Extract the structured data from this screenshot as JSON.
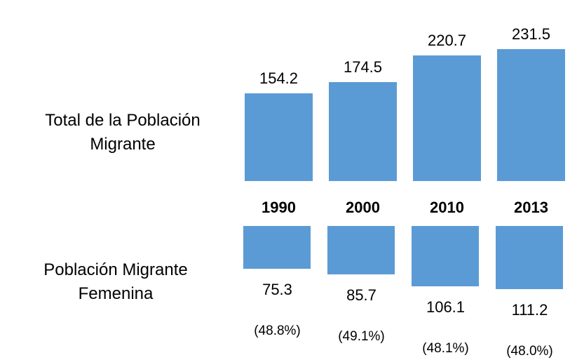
{
  "chart_data": {
    "type": "bar",
    "categories": [
      "1990",
      "2000",
      "2010",
      "2013"
    ],
    "series": [
      {
        "name": "Total de la Población Migrante",
        "color": "#5b9bd5",
        "values": [
          154.2,
          174.5,
          220.7,
          231.5
        ]
      },
      {
        "name": "Población Migrante Femenina",
        "color": "#5b9bd5",
        "values": [
          75.3,
          85.7,
          106.1,
          111.2
        ],
        "notes": [
          "(48.8%)",
          "(49.1%)",
          "(48.1%)",
          "(48.0%)"
        ]
      }
    ]
  }
}
